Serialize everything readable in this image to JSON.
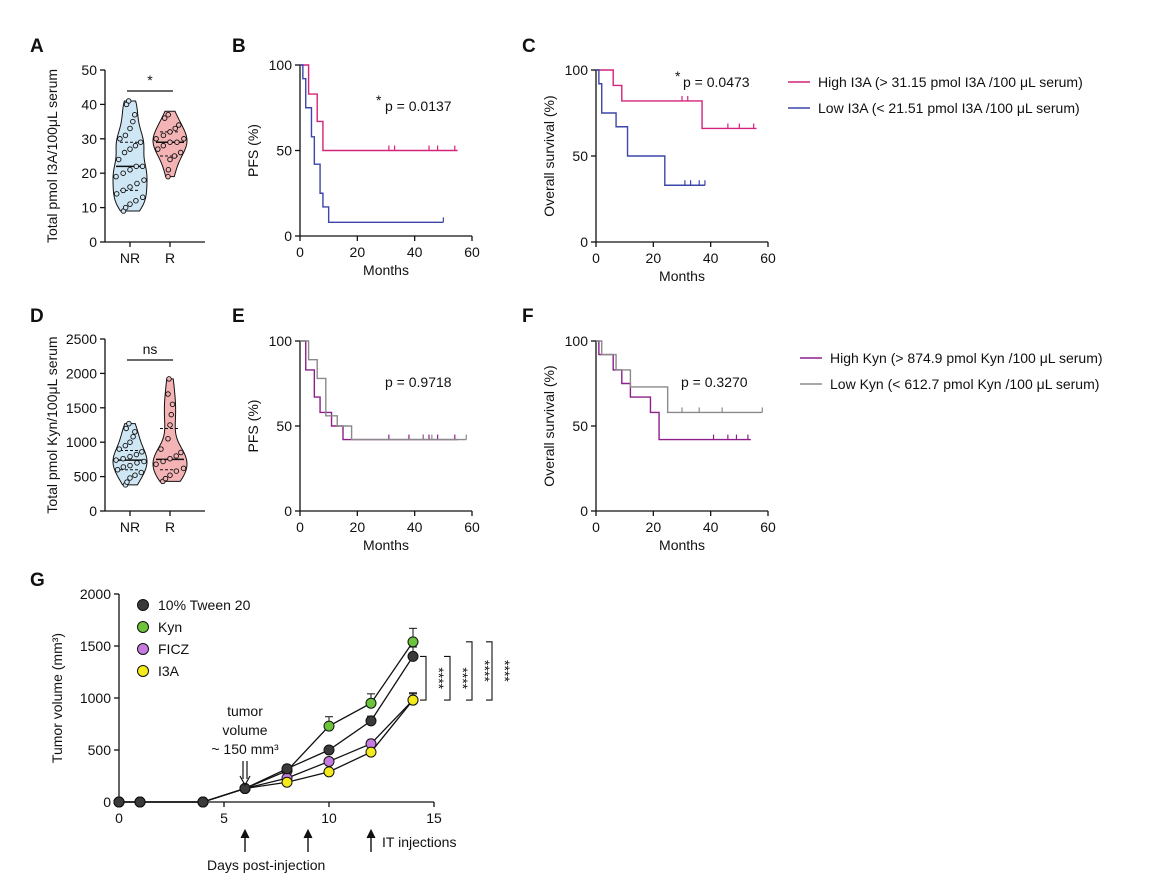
{
  "colors": {
    "high_i3a": "#d4237a",
    "low_i3a": "#3b46a8",
    "high_kyn": "#8c1f8a",
    "low_kyn": "#8a8a8a",
    "nr_fill": "#cfe6f5",
    "r_fill": "#f4b3b5",
    "tween": "#3a3a3a",
    "kyn": "#6bc43a",
    "ficz": "#c57be0",
    "i3a": "#f5ea1a"
  },
  "panels": {
    "A": "A",
    "B": "B",
    "C": "C",
    "D": "D",
    "E": "E",
    "F": "F",
    "G": "G"
  },
  "chart_data": [
    {
      "id": "A",
      "type": "violin",
      "ylabel": "Total pmol I3A/100μL serum",
      "ylim": [
        0,
        50
      ],
      "yticks": [
        "0",
        "10",
        "20",
        "30",
        "40",
        "50"
      ],
      "categories": [
        "NR",
        "R"
      ],
      "significance": "*",
      "groups": [
        {
          "name": "NR",
          "median": 22,
          "q1": 15,
          "q3": 29,
          "min": 9,
          "max": 41,
          "points": [
            9,
            10,
            11,
            12,
            13,
            14,
            15,
            16,
            17,
            18,
            19,
            20,
            21,
            22,
            22,
            24,
            26,
            27,
            28,
            29,
            30,
            31,
            33,
            35,
            37,
            40,
            41
          ]
        },
        {
          "name": "R",
          "median": 29,
          "q1": 25,
          "q3": 32,
          "min": 19,
          "max": 38,
          "points": [
            19,
            21,
            24,
            25,
            26,
            27,
            28,
            29,
            29,
            30,
            30,
            31,
            32,
            33,
            34,
            36,
            37
          ]
        }
      ]
    },
    {
      "id": "B",
      "type": "survival",
      "ylabel": "PFS (%)",
      "xlabel": "Months",
      "xlim": [
        0,
        60
      ],
      "ylim": [
        0,
        100
      ],
      "xticks": [
        "0",
        "20",
        "40",
        "60"
      ],
      "yticks": [
        "0",
        "50",
        "100"
      ],
      "pvalue": "p = 0.0137",
      "star": "*",
      "series": [
        {
          "key": "high_i3a",
          "steps": [
            [
              0,
              100
            ],
            [
              3,
              100
            ],
            [
              3,
              83
            ],
            [
              6,
              83
            ],
            [
              6,
              67
            ],
            [
              8,
              67
            ],
            [
              8,
              50
            ],
            [
              55,
              50
            ]
          ],
          "censor": [
            31,
            33,
            45,
            48,
            54
          ]
        },
        {
          "key": "low_i3a",
          "steps": [
            [
              0,
              100
            ],
            [
              1,
              100
            ],
            [
              1,
              92
            ],
            [
              2,
              92
            ],
            [
              2,
              75
            ],
            [
              4,
              75
            ],
            [
              4,
              58
            ],
            [
              5,
              58
            ],
            [
              5,
              42
            ],
            [
              7,
              42
            ],
            [
              7,
              25
            ],
            [
              8,
              25
            ],
            [
              8,
              17
            ],
            [
              10,
              17
            ],
            [
              10,
              8
            ],
            [
              50,
              8
            ]
          ],
          "censor": [
            50
          ]
        }
      ]
    },
    {
      "id": "C",
      "type": "survival",
      "ylabel": "Overall survival (%)",
      "xlabel": "Months",
      "xlim": [
        0,
        60
      ],
      "ylim": [
        0,
        100
      ],
      "xticks": [
        "0",
        "20",
        "40",
        "60"
      ],
      "yticks": [
        "0",
        "50",
        "100"
      ],
      "pvalue": "p = 0.0473",
      "star": "*",
      "series": [
        {
          "key": "high_i3a",
          "steps": [
            [
              0,
              100
            ],
            [
              6,
              100
            ],
            [
              6,
              91
            ],
            [
              9,
              91
            ],
            [
              9,
              82
            ],
            [
              37,
              82
            ],
            [
              37,
              66
            ],
            [
              56,
              66
            ]
          ],
          "censor": [
            30,
            32,
            46,
            50,
            55
          ]
        },
        {
          "key": "low_i3a",
          "steps": [
            [
              0,
              100
            ],
            [
              1,
              100
            ],
            [
              1,
              92
            ],
            [
              2,
              92
            ],
            [
              2,
              75
            ],
            [
              7,
              75
            ],
            [
              7,
              67
            ],
            [
              11,
              67
            ],
            [
              11,
              50
            ],
            [
              24,
              50
            ],
            [
              24,
              33
            ],
            [
              38,
              33
            ]
          ],
          "censor": [
            31,
            33,
            36,
            38
          ]
        }
      ]
    },
    {
      "id": "D",
      "type": "violin",
      "ylabel": "Total pmol Kyn/100μL serum",
      "ylim": [
        0,
        2500
      ],
      "yticks": [
        "0",
        "500",
        "1000",
        "1500",
        "2000",
        "2500"
      ],
      "categories": [
        "NR",
        "R"
      ],
      "significance": "ns",
      "groups": [
        {
          "name": "NR",
          "median": 740,
          "q1": 600,
          "q3": 880,
          "min": 380,
          "max": 1270,
          "points": [
            380,
            420,
            480,
            520,
            560,
            600,
            640,
            660,
            700,
            720,
            740,
            760,
            790,
            820,
            860,
            900,
            950,
            1000,
            1080,
            1150,
            1200,
            1270
          ]
        },
        {
          "name": "R",
          "median": 750,
          "q1": 600,
          "q3": 1200,
          "min": 430,
          "max": 1920,
          "points": [
            430,
            470,
            520,
            580,
            620,
            680,
            720,
            760,
            800,
            850,
            900,
            1050,
            1250,
            1400,
            1550,
            1700,
            1920
          ]
        }
      ]
    },
    {
      "id": "E",
      "type": "survival",
      "ylabel": "PFS (%)",
      "xlabel": "Months",
      "xlim": [
        0,
        60
      ],
      "ylim": [
        0,
        100
      ],
      "xticks": [
        "0",
        "20",
        "40",
        "60"
      ],
      "yticks": [
        "0",
        "50",
        "100"
      ],
      "pvalue": "p = 0.9718",
      "series": [
        {
          "key": "high_kyn",
          "steps": [
            [
              0,
              100
            ],
            [
              2,
              100
            ],
            [
              2,
              83
            ],
            [
              5,
              83
            ],
            [
              5,
              67
            ],
            [
              7,
              67
            ],
            [
              7,
              58
            ],
            [
              11,
              58
            ],
            [
              11,
              50
            ],
            [
              15,
              50
            ],
            [
              15,
              42
            ],
            [
              55,
              42
            ]
          ],
          "censor": [
            31,
            38,
            43,
            45,
            48,
            54
          ]
        },
        {
          "key": "low_kyn",
          "steps": [
            [
              0,
              100
            ],
            [
              3,
              100
            ],
            [
              3,
              89
            ],
            [
              6,
              89
            ],
            [
              6,
              78
            ],
            [
              9,
              78
            ],
            [
              9,
              56
            ],
            [
              13,
              56
            ],
            [
              13,
              50
            ],
            [
              18,
              50
            ],
            [
              18,
              42
            ],
            [
              58,
              42
            ]
          ],
          "censor": [
            43,
            46,
            58
          ]
        }
      ]
    },
    {
      "id": "F",
      "type": "survival",
      "ylabel": "Overall survival (%)",
      "xlabel": "Months",
      "xlim": [
        0,
        60
      ],
      "ylim": [
        0,
        100
      ],
      "xticks": [
        "0",
        "20",
        "40",
        "60"
      ],
      "yticks": [
        "0",
        "50",
        "100"
      ],
      "pvalue": "p = 0.3270",
      "series": [
        {
          "key": "high_kyn",
          "steps": [
            [
              0,
              100
            ],
            [
              1,
              100
            ],
            [
              1,
              92
            ],
            [
              6,
              92
            ],
            [
              6,
              83
            ],
            [
              9,
              83
            ],
            [
              9,
              75
            ],
            [
              12,
              75
            ],
            [
              12,
              67
            ],
            [
              19,
              67
            ],
            [
              19,
              58
            ],
            [
              22,
              58
            ],
            [
              22,
              42
            ],
            [
              54,
              42
            ]
          ],
          "censor": [
            41,
            46,
            49,
            53
          ]
        },
        {
          "key": "low_kyn",
          "steps": [
            [
              0,
              100
            ],
            [
              2,
              100
            ],
            [
              2,
              92
            ],
            [
              7,
              92
            ],
            [
              7,
              83
            ],
            [
              12,
              83
            ],
            [
              12,
              73
            ],
            [
              25,
              73
            ],
            [
              25,
              58
            ],
            [
              58,
              58
            ]
          ],
          "censor": [
            30,
            36,
            44,
            58
          ]
        }
      ]
    },
    {
      "id": "G",
      "type": "line",
      "ylabel": "Tumor volume (mm³)",
      "xlabel": "Days post-injection",
      "xlim": [
        0,
        15
      ],
      "ylim": [
        0,
        2000
      ],
      "xticks": [
        "0",
        "5",
        "10",
        "15"
      ],
      "yticks": [
        "0",
        "500",
        "1000",
        "1500",
        "2000"
      ],
      "annotation": [
        "tumor",
        "volume",
        "~ 150 mm³"
      ],
      "injection_label": "IT injections",
      "injection_days": [
        6,
        9,
        12
      ],
      "significance": [
        "****",
        "****",
        "****",
        "****"
      ],
      "x": [
        0,
        1,
        4,
        6,
        8,
        10,
        12,
        14
      ],
      "series": [
        {
          "name": "10% Tween 20",
          "key": "tween",
          "values": [
            0,
            0,
            0,
            130,
            320,
            500,
            780,
            1400
          ],
          "err": [
            0,
            0,
            0,
            10,
            35,
            25,
            45,
            90
          ]
        },
        {
          "name": "Kyn",
          "key": "kyn",
          "values": [
            0,
            0,
            0,
            130,
            300,
            730,
            950,
            1540
          ],
          "err": [
            0,
            0,
            0,
            10,
            35,
            90,
            90,
            130
          ]
        },
        {
          "name": "FICZ",
          "key": "ficz",
          "values": [
            0,
            0,
            0,
            130,
            230,
            390,
            560,
            980
          ],
          "err": [
            0,
            0,
            0,
            10,
            25,
            30,
            35,
            60
          ]
        },
        {
          "name": "I3A",
          "key": "i3a",
          "values": [
            0,
            0,
            0,
            130,
            190,
            290,
            480,
            980
          ],
          "err": [
            0,
            0,
            0,
            10,
            20,
            25,
            30,
            70
          ]
        }
      ]
    }
  ],
  "legends": {
    "top": [
      {
        "key": "high_i3a",
        "label": "High I3A (> 31.15 pmol I3A /100 μL serum)"
      },
      {
        "key": "low_i3a",
        "label": "Low I3A (< 21.51 pmol I3A /100 μL serum)"
      }
    ],
    "mid": [
      {
        "key": "high_kyn",
        "label": "High Kyn (> 874.9 pmol Kyn /100 μL serum)"
      },
      {
        "key": "low_kyn",
        "label": "Low Kyn (< 612.7 pmol Kyn /100 μL serum)"
      }
    ]
  }
}
